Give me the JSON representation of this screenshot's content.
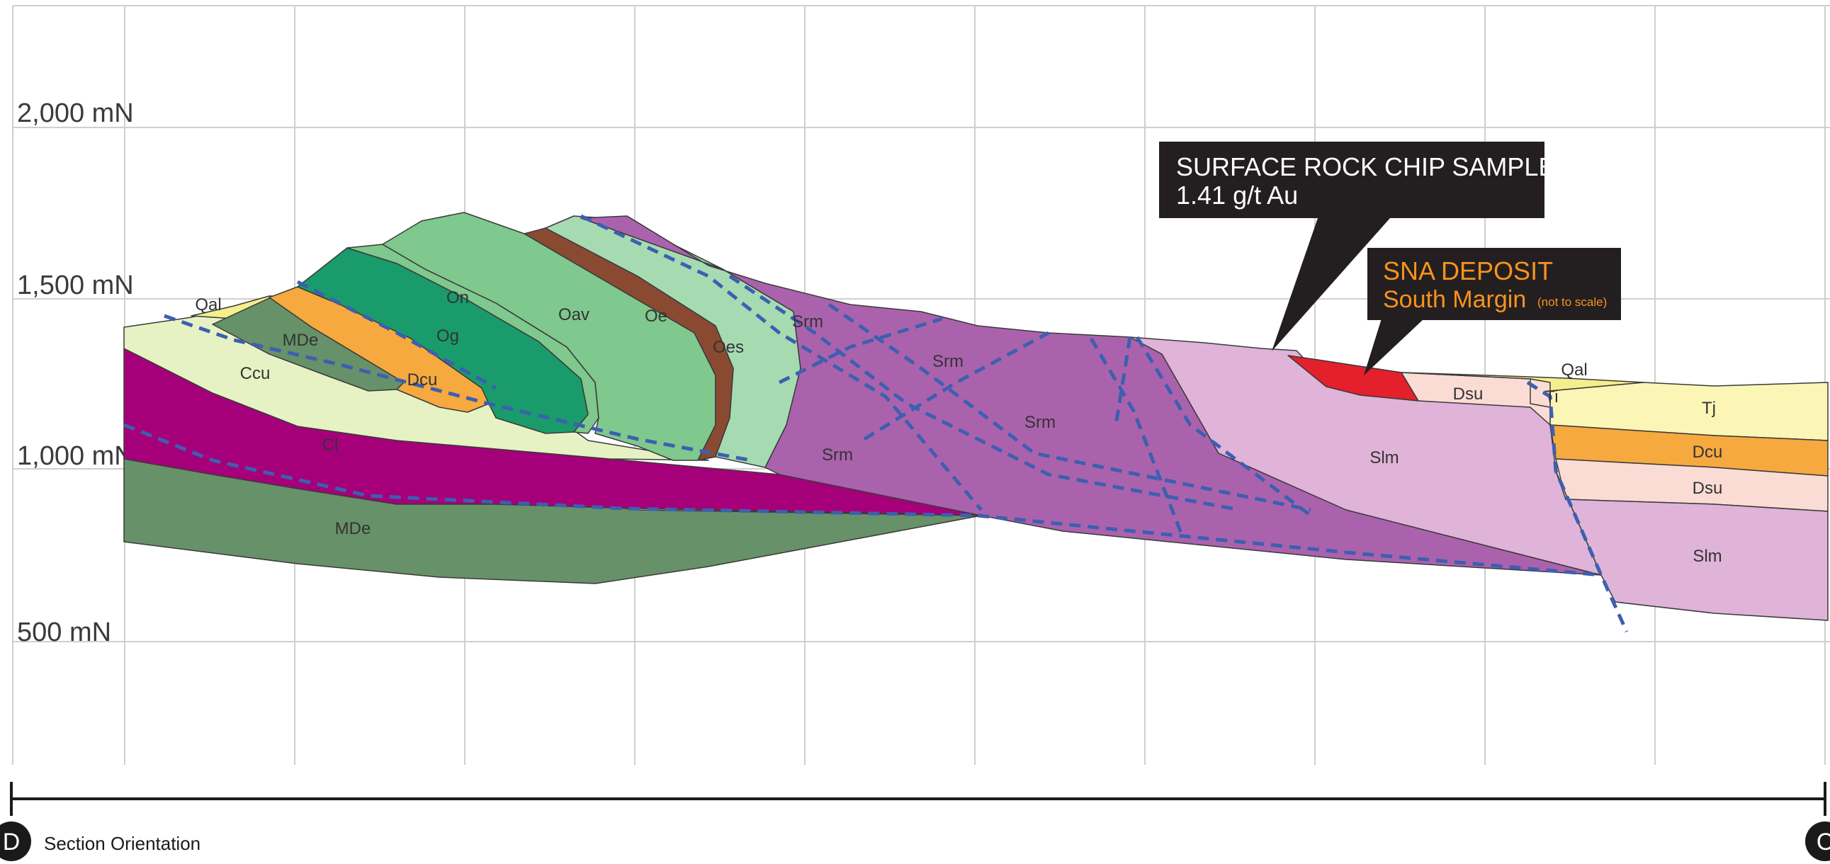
{
  "section": {
    "elevation_labels": [
      "2,000 mN",
      "1,500 mN",
      "1,000 mN",
      "500 mN"
    ],
    "orientation_label": "Section Orientation",
    "start_point": "D",
    "end_point": "C"
  },
  "callouts": {
    "rock_chip": {
      "line1": "SURFACE ROCK CHIP SAMPLE",
      "line2": "1.41 g/t Au"
    },
    "deposit": {
      "line1": "SNA DEPOSIT",
      "line2": "South Margin",
      "note": "(not to scale)"
    }
  },
  "units": {
    "qal_left": "Qal",
    "mde_upper": "MDe",
    "ccu": "Ccu",
    "dcu_left": "Dcu",
    "on": "On",
    "og": "Og",
    "oav": "Oav",
    "oe": "Oe",
    "oes": "Oes",
    "srm_1": "Srm",
    "srm_2": "Srm",
    "srm_3": "Srm",
    "srm_4": "Srm",
    "cl": "Cl",
    "mde_lower": "MDe",
    "slm_center": "Slm",
    "dsu_upper": "Dsu",
    "qal_right": "Qal",
    "ti": "Ti",
    "tj": "Tj",
    "dcu_right": "Dcu",
    "dsu_right": "Dsu",
    "slm_right": "Slm"
  },
  "colors": {
    "grid": "#cfcfcf",
    "fault": "#3d5fb0",
    "Qal": "#f4ef8c",
    "MDe": "#679168",
    "Ccu": "#e6f2c3",
    "Dcu": "#f6a93f",
    "On": "#7fc88e",
    "Og": "#1a9b6c",
    "Oav": "#7fc88e",
    "Oe": "#8a4a32",
    "Oes": "#a6dbb2",
    "Srm": "#ab62ad",
    "Cl": "#a5007a",
    "Slm": "#e0b3d9",
    "Dsu": "#fbdcd4",
    "Tj": "#fbf6b6",
    "deposit_red": "#e3202b",
    "callout_bg": "#231f20",
    "deposit_text": "#f7931e"
  }
}
